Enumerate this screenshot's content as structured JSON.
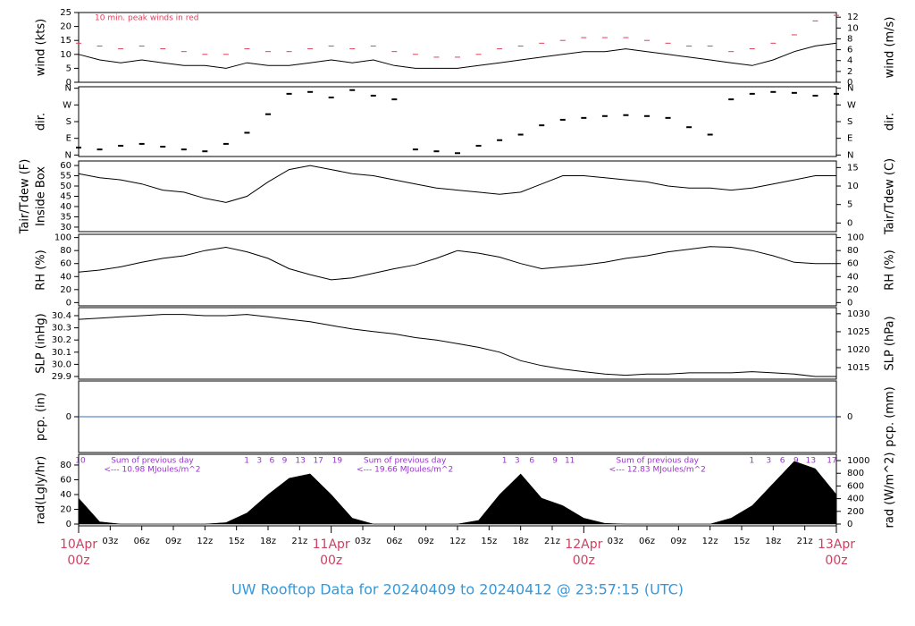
{
  "title": "UW Rooftop Data for 20240409  to  20240412 @ 23:57:15  (UTC)",
  "xlim": [
    0,
    72
  ],
  "xticks": [
    {
      "value": 3,
      "label": "03z"
    },
    {
      "value": 6,
      "label": "06z"
    },
    {
      "value": 9,
      "label": "09z"
    },
    {
      "value": 12,
      "label": "12z"
    },
    {
      "value": 15,
      "label": "15z"
    },
    {
      "value": 18,
      "label": "18z"
    },
    {
      "value": 21,
      "label": "21z"
    },
    {
      "value": 27,
      "label": "03z"
    },
    {
      "value": 30,
      "label": "06z"
    },
    {
      "value": 33,
      "label": "09z"
    },
    {
      "value": 36,
      "label": "12z"
    },
    {
      "value": 39,
      "label": "15z"
    },
    {
      "value": 42,
      "label": "18z"
    },
    {
      "value": 45,
      "label": "21z"
    },
    {
      "value": 51,
      "label": "03z"
    },
    {
      "value": 54,
      "label": "06z"
    },
    {
      "value": 57,
      "label": "09z"
    },
    {
      "value": 60,
      "label": "12z"
    },
    {
      "value": 63,
      "label": "15z"
    },
    {
      "value": 66,
      "label": "18z"
    },
    {
      "value": 69,
      "label": "21z"
    }
  ],
  "day_ticks": [
    {
      "value": 0,
      "label": "10Apr",
      "sub": "00z"
    },
    {
      "value": 24,
      "label": "11Apr",
      "sub": "00z"
    },
    {
      "value": 48,
      "label": "12Apr",
      "sub": "00z"
    },
    {
      "value": 72,
      "label": "13Apr",
      "sub": "00z"
    }
  ],
  "chart_data": [
    {
      "type": "line",
      "ylabel": [
        "wind (kts)"
      ],
      "y2label": "wind (m/s)",
      "annotation": "10 min. peak winds in red",
      "ylim": [
        0,
        25
      ],
      "yticks": [
        0,
        5,
        10,
        15,
        20,
        25
      ],
      "y2lim": [
        0,
        12.86
      ],
      "y2ticks": [
        0,
        2,
        4,
        6,
        8,
        10,
        12
      ],
      "x": [
        0,
        2,
        4,
        6,
        8,
        10,
        12,
        14,
        16,
        18,
        20,
        22,
        24,
        26,
        28,
        30,
        32,
        34,
        36,
        38,
        40,
        42,
        44,
        46,
        48,
        50,
        52,
        54,
        56,
        58,
        60,
        62,
        64,
        66,
        68,
        70,
        72
      ],
      "series": [
        {
          "color": "#000000",
          "values": [
            10,
            8,
            7,
            8,
            7,
            6,
            6,
            5,
            7,
            6,
            6,
            7,
            8,
            7,
            8,
            6,
            5,
            5,
            5,
            6,
            7,
            8,
            9,
            10,
            11,
            11,
            12,
            11,
            10,
            9,
            8,
            7,
            6,
            8,
            11,
            13,
            14
          ]
        },
        {
          "color": "#e0405a",
          "marker": "dash",
          "values": [
            14,
            13,
            12,
            13,
            12,
            11,
            10,
            10,
            12,
            11,
            11,
            12,
            13,
            12,
            13,
            11,
            10,
            9,
            9,
            10,
            12,
            13,
            14,
            15,
            16,
            16,
            16,
            15,
            14,
            13,
            13,
            11,
            12,
            14,
            17,
            22,
            24
          ]
        }
      ]
    },
    {
      "type": "scatter",
      "ylabel": [
        "dir."
      ],
      "y2label": "dir.",
      "ylim": [
        -8,
        368
      ],
      "yticks": [
        {
          "value": 0,
          "label": "N"
        },
        {
          "value": 90,
          "label": "E"
        },
        {
          "value": 180,
          "label": "S"
        },
        {
          "value": 270,
          "label": "W"
        },
        {
          "value": 360,
          "label": "N"
        }
      ],
      "y2lim": [
        -8,
        368
      ],
      "y2ticks": [
        {
          "value": 0,
          "label": "N"
        },
        {
          "value": 90,
          "label": "E"
        },
        {
          "value": 180,
          "label": "S"
        },
        {
          "value": 270,
          "label": "W"
        },
        {
          "value": 360,
          "label": "N"
        }
      ],
      "x": [
        0,
        2,
        4,
        6,
        8,
        10,
        12,
        14,
        16,
        18,
        20,
        22,
        24,
        26,
        28,
        30,
        32,
        34,
        36,
        38,
        40,
        42,
        44,
        46,
        48,
        50,
        52,
        54,
        56,
        58,
        60,
        62,
        64,
        66,
        68,
        70,
        72
      ],
      "series": [
        {
          "color": "#000000",
          "values": [
            40,
            30,
            50,
            60,
            45,
            30,
            20,
            60,
            120,
            220,
            330,
            340,
            310,
            350,
            320,
            300,
            30,
            20,
            10,
            50,
            80,
            110,
            160,
            190,
            200,
            210,
            215,
            210,
            200,
            150,
            110,
            300,
            330,
            340,
            335,
            320,
            330
          ]
        }
      ]
    },
    {
      "type": "line",
      "ylabel": [
        "Tair/Tdew (F)",
        "Inside Box"
      ],
      "y2label": "Tair/Tdew (C)",
      "ylim": [
        27.8,
        62.2
      ],
      "yticks": [
        30,
        35,
        40,
        45,
        50,
        55,
        60
      ],
      "y2lim": [
        -2.33,
        16.78
      ],
      "y2ticks": [
        0,
        5,
        10,
        15
      ],
      "x": [
        0,
        2,
        4,
        6,
        8,
        10,
        12,
        14,
        16,
        18,
        20,
        22,
        24,
        26,
        28,
        30,
        32,
        34,
        36,
        38,
        40,
        42,
        44,
        46,
        48,
        50,
        52,
        54,
        56,
        58,
        60,
        62,
        64,
        66,
        68,
        70,
        72
      ],
      "series": [
        {
          "color": "#000000",
          "values": [
            56,
            54,
            53,
            51,
            48,
            47,
            44,
            42,
            45,
            52,
            58,
            60,
            58,
            56,
            55,
            53,
            51,
            49,
            48,
            47,
            46,
            47,
            51,
            55,
            55,
            54,
            53,
            52,
            50,
            49,
            49,
            48,
            49,
            51,
            53,
            55,
            55
          ]
        }
      ]
    },
    {
      "type": "line",
      "ylabel": [
        "RH (%)"
      ],
      "y2label": "RH (%)",
      "ylim": [
        -5,
        105
      ],
      "yticks": [
        0,
        20,
        40,
        60,
        80,
        100
      ],
      "y2lim": [
        -5,
        105
      ],
      "y2ticks": [
        0,
        20,
        40,
        60,
        80,
        100
      ],
      "x": [
        0,
        2,
        4,
        6,
        8,
        10,
        12,
        14,
        16,
        18,
        20,
        22,
        24,
        26,
        28,
        30,
        32,
        34,
        36,
        38,
        40,
        42,
        44,
        46,
        48,
        50,
        52,
        54,
        56,
        58,
        60,
        62,
        64,
        66,
        68,
        70,
        72
      ],
      "series": [
        {
          "color": "#000000",
          "values": [
            47,
            50,
            55,
            62,
            68,
            72,
            80,
            85,
            78,
            68,
            52,
            43,
            35,
            38,
            45,
            52,
            58,
            68,
            80,
            76,
            70,
            60,
            52,
            55,
            58,
            62,
            68,
            72,
            78,
            82,
            86,
            85,
            80,
            72,
            62,
            60,
            60
          ]
        }
      ]
    },
    {
      "type": "line",
      "ylabel": [
        "SLP (inHg)"
      ],
      "y2label": "SLP (hPa)",
      "ylim": [
        29.878,
        30.466
      ],
      "yticks": [
        29.9,
        {
          "value": 30,
          "label": "30.0"
        },
        30.1,
        30.2,
        30.3,
        30.4
      ],
      "y2lim": [
        1011.8,
        1031.7
      ],
      "y2ticks": [
        1015,
        1020,
        1025,
        1030
      ],
      "x": [
        0,
        2,
        4,
        6,
        8,
        10,
        12,
        14,
        16,
        18,
        20,
        22,
        24,
        26,
        28,
        30,
        32,
        34,
        36,
        38,
        40,
        42,
        44,
        46,
        48,
        50,
        52,
        54,
        56,
        58,
        60,
        62,
        64,
        66,
        68,
        70,
        72
      ],
      "series": [
        {
          "color": "#000000",
          "values": [
            30.37,
            30.38,
            30.39,
            30.4,
            30.41,
            30.41,
            30.4,
            30.4,
            30.41,
            30.39,
            30.37,
            30.35,
            30.32,
            30.29,
            30.27,
            30.25,
            30.22,
            30.2,
            30.17,
            30.14,
            30.1,
            30.03,
            29.99,
            29.96,
            29.94,
            29.92,
            29.91,
            29.92,
            29.92,
            29.93,
            29.93,
            29.93,
            29.94,
            29.93,
            29.92,
            29.9,
            29.9
          ]
        }
      ]
    },
    {
      "type": "line",
      "ylabel": [
        "pcp. (in)"
      ],
      "y2label": "pcp. (mm)",
      "ylim": [
        -1,
        1
      ],
      "yticks": [
        0
      ],
      "y2lim": [
        -1,
        1
      ],
      "y2ticks": [
        0
      ],
      "x": [
        0,
        72
      ],
      "series": [
        {
          "color": "#3a6fbf",
          "values": [
            0,
            0
          ]
        }
      ]
    },
    {
      "type": "area",
      "ylabel": [
        "rad(Lgly/hr)"
      ],
      "y2label": "rad (W/m^2)",
      "ylim": [
        -2.4,
        94.5
      ],
      "yticks": [
        0,
        20,
        40,
        60,
        80
      ],
      "y2lim": [
        -28,
        1099
      ],
      "y2ticks": [
        0,
        200,
        400,
        600,
        800,
        1000
      ],
      "annotations": [
        {
          "value": 7,
          "label": "Sum of previous day",
          "sub": "<--- 10.98 MJoules/m^2"
        },
        {
          "value": 31,
          "label": "Sum of previous day",
          "sub": "<--- 19.66 MJoules/m^2"
        },
        {
          "value": 55,
          "label": "Sum of previous day",
          "sub": "<--- 12.83 MJoules/m^2"
        }
      ],
      "hour_labels": [
        {
          "value": 0,
          "label": "10"
        },
        {
          "value": 15.8,
          "label": "1"
        },
        {
          "value": 17,
          "label": "3"
        },
        {
          "value": 18.2,
          "label": "6"
        },
        {
          "value": 19.4,
          "label": "9"
        },
        {
          "value": 20.9,
          "label": "13"
        },
        {
          "value": 22.6,
          "label": "17"
        },
        {
          "value": 24.4,
          "label": "19"
        },
        {
          "value": 40.3,
          "label": "1"
        },
        {
          "value": 41.5,
          "label": "3"
        },
        {
          "value": 42.9,
          "label": "6"
        },
        {
          "value": 45.1,
          "label": "9"
        },
        {
          "value": 46.5,
          "label": "11"
        },
        {
          "value": 63.8,
          "label": "1"
        },
        {
          "value": 65.4,
          "label": "3"
        },
        {
          "value": 66.7,
          "label": "6"
        },
        {
          "value": 68,
          "label": "9"
        },
        {
          "value": 69.4,
          "label": "13"
        },
        {
          "value": 71.4,
          "label": "17"
        }
      ],
      "x": [
        0,
        2,
        4,
        6,
        8,
        10,
        12,
        14,
        16,
        18,
        20,
        22,
        24,
        26,
        28,
        30,
        32,
        34,
        36,
        38,
        40,
        42,
        44,
        46,
        48,
        50,
        52,
        54,
        56,
        58,
        60,
        62,
        64,
        66,
        68,
        70,
        72
      ],
      "series": [
        {
          "color": "#000000",
          "values": [
            35,
            3,
            0,
            0,
            0,
            0,
            0,
            2,
            15,
            40,
            62,
            68,
            40,
            8,
            0,
            0,
            0,
            0,
            0,
            5,
            40,
            68,
            35,
            25,
            8,
            1,
            0,
            0,
            0,
            0,
            0,
            8,
            25,
            55,
            85,
            75,
            40
          ]
        }
      ]
    }
  ]
}
